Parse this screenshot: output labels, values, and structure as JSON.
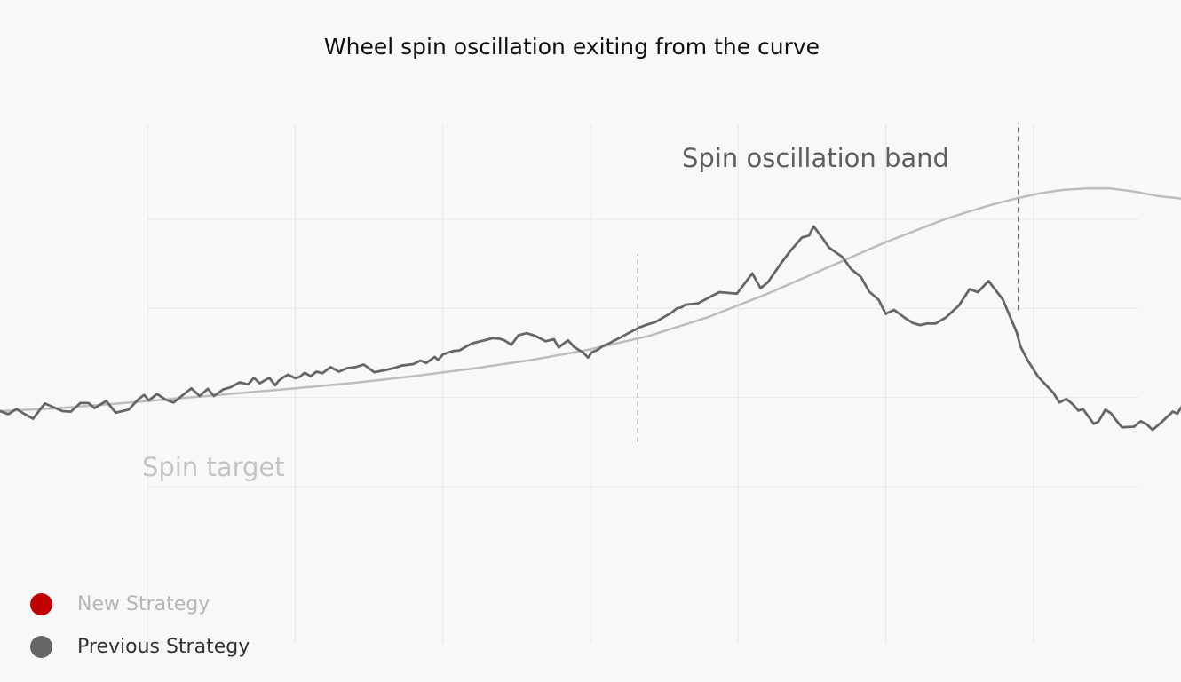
{
  "chart_data": {
    "type": "line",
    "title": "Wheel spin oscillation exiting from the curve",
    "xlabel": "",
    "ylabel": "",
    "xlim": [
      0,
      100
    ],
    "ylim": [
      0,
      100
    ],
    "grid": {
      "vertical": true,
      "horizontal": true
    },
    "x_gridlines": [
      12.5,
      25,
      37.5,
      50,
      62.5,
      75,
      87.5
    ],
    "y_gridlines": [
      33.7,
      51.3,
      68.9,
      86.5
    ],
    "legend_position": "bottom-left",
    "legend": [
      {
        "label": "New Strategy",
        "marker_color": "#c00000",
        "text_color": "#b5b5b5"
      },
      {
        "label": "Previous Strategy",
        "marker_color": "#666666",
        "text_color": "#333333"
      }
    ],
    "annotations": [
      {
        "text": "Spin target",
        "color": "#c4c4c4"
      },
      {
        "text": "Spin oscillation band",
        "color": "#5f5f5f"
      }
    ],
    "markers": [
      {
        "x": 54.0,
        "y_range": [
          42.5,
          79.7
        ],
        "style": "dashed"
      },
      {
        "x": 86.2,
        "y_range": [
          68.5,
          105.5
        ],
        "style": "dashed"
      }
    ],
    "series": [
      {
        "role": "target",
        "color": "#bdbdbd",
        "x": [
          0,
          5,
          10,
          15,
          20,
          25,
          30,
          35,
          40,
          45,
          50,
          55,
          60,
          65,
          70,
          75,
          80,
          82,
          84,
          86,
          88,
          90,
          92,
          94,
          96,
          98,
          100
        ],
        "y": [
          48.6,
          49.2,
          50.1,
          51.1,
          52.1,
          53.1,
          54.2,
          55.5,
          57.0,
          58.7,
          60.8,
          63.5,
          67.2,
          71.8,
          76.9,
          82.0,
          86.5,
          88.0,
          89.4,
          90.6,
          91.6,
          92.3,
          92.6,
          92.6,
          92.0,
          91.1,
          90.6
        ]
      },
      {
        "role": "measured",
        "color": "#666666",
        "x": [
          0.0,
          0.7,
          1.4,
          2.1,
          2.8,
          3.8,
          5.3,
          6.0,
          6.8,
          7.5,
          8.0,
          9.0,
          9.8,
          10.9,
          11.3,
          11.7,
          12.2,
          12.6,
          13.3,
          14.0,
          14.7,
          15.5,
          16.2,
          16.9,
          17.6,
          18.1,
          18.5,
          18.9,
          19.5,
          20.3,
          21.0,
          21.5,
          22.0,
          22.8,
          23.3,
          23.6,
          24.0,
          24.4,
          25.0,
          25.4,
          25.8,
          26.3,
          26.8,
          27.3,
          28.0,
          28.7,
          29.4,
          30.1,
          30.8,
          31.7,
          32.8,
          33.5,
          34.0,
          35.0,
          35.6,
          36.1,
          36.8,
          37.1,
          37.5,
          38.4,
          38.9,
          39.5,
          40.0,
          40.5,
          41.2,
          41.7,
          42.3,
          42.7,
          43.3,
          43.9,
          44.6,
          45.3,
          46.2,
          46.9,
          47.3,
          48.1,
          48.6,
          49.4,
          49.8,
          50.1,
          50.6,
          51.0,
          51.5,
          51.9,
          52.5,
          53.2,
          53.7,
          54.2,
          54.8,
          55.5,
          56.1,
          56.9,
          57.3,
          57.7,
          58.0,
          59.1,
          60.9,
          62.4,
          63.7,
          64.4,
          65.0,
          66.1,
          66.9,
          67.9,
          68.5,
          68.9,
          69.7,
          70.2,
          71.3,
          72.1,
          72.9,
          73.6,
          74.4,
          75.0,
          75.7,
          76.7,
          77.3,
          77.9,
          78.5,
          79.2,
          80.1,
          81.2,
          82.1,
          82.8,
          83.7,
          84.9,
          86.1,
          86.4,
          87.0,
          87.9,
          89.2,
          89.7,
          90.3,
          90.9,
          91.3,
          91.7,
          92.6,
          93.0,
          93.6,
          94.1,
          94.5,
          95.0,
          96.0,
          96.6,
          97.1,
          97.6,
          98.3,
          98.8,
          99.3,
          99.7,
          100.0
        ],
        "y": [
          48.6,
          48.0,
          49.0,
          48.0,
          47.1,
          50.1,
          48.6,
          48.5,
          50.2,
          50.2,
          49.2,
          50.6,
          48.3,
          48.9,
          49.9,
          50.9,
          51.8,
          50.7,
          52.0,
          50.9,
          50.3,
          51.8,
          53.1,
          51.6,
          53.0,
          51.6,
          52.2,
          52.9,
          53.3,
          54.3,
          53.9,
          55.2,
          54.1,
          55.2,
          53.7,
          54.6,
          55.3,
          55.8,
          55.1,
          55.4,
          56.2,
          55.5,
          56.4,
          56.1,
          57.3,
          56.4,
          57.1,
          57.3,
          57.8,
          56.3,
          56.8,
          57.2,
          57.6,
          57.9,
          58.6,
          58.1,
          59.3,
          58.7,
          59.8,
          60.5,
          60.6,
          61.4,
          62.0,
          62.3,
          62.7,
          63.0,
          62.9,
          62.6,
          61.7,
          63.6,
          64.0,
          63.5,
          62.4,
          62.8,
          61.2,
          62.6,
          61.3,
          60.1,
          59.2,
          60.2,
          60.7,
          61.4,
          61.9,
          62.4,
          63.1,
          64.0,
          64.6,
          65.2,
          65.7,
          66.2,
          67.0,
          68.1,
          68.9,
          69.1,
          69.6,
          69.9,
          72.1,
          71.8,
          75.8,
          72.9,
          74.0,
          77.7,
          80.2,
          82.9,
          83.3,
          85.1,
          82.6,
          80.9,
          79.1,
          76.6,
          75.1,
          72.2,
          70.6,
          67.8,
          68.6,
          66.9,
          66.0,
          65.6,
          65.9,
          65.9,
          67.1,
          69.5,
          72.7,
          72.1,
          74.3,
          70.7,
          64.1,
          61.4,
          58.7,
          55.4,
          52.2,
          50.3,
          51.0,
          49.8,
          48.7,
          49.0,
          46.1,
          46.5,
          48.9,
          48.1,
          46.8,
          45.4,
          45.5,
          46.6,
          46.0,
          44.9,
          46.3,
          47.4,
          48.5,
          48.1,
          49.3
        ]
      }
    ]
  }
}
